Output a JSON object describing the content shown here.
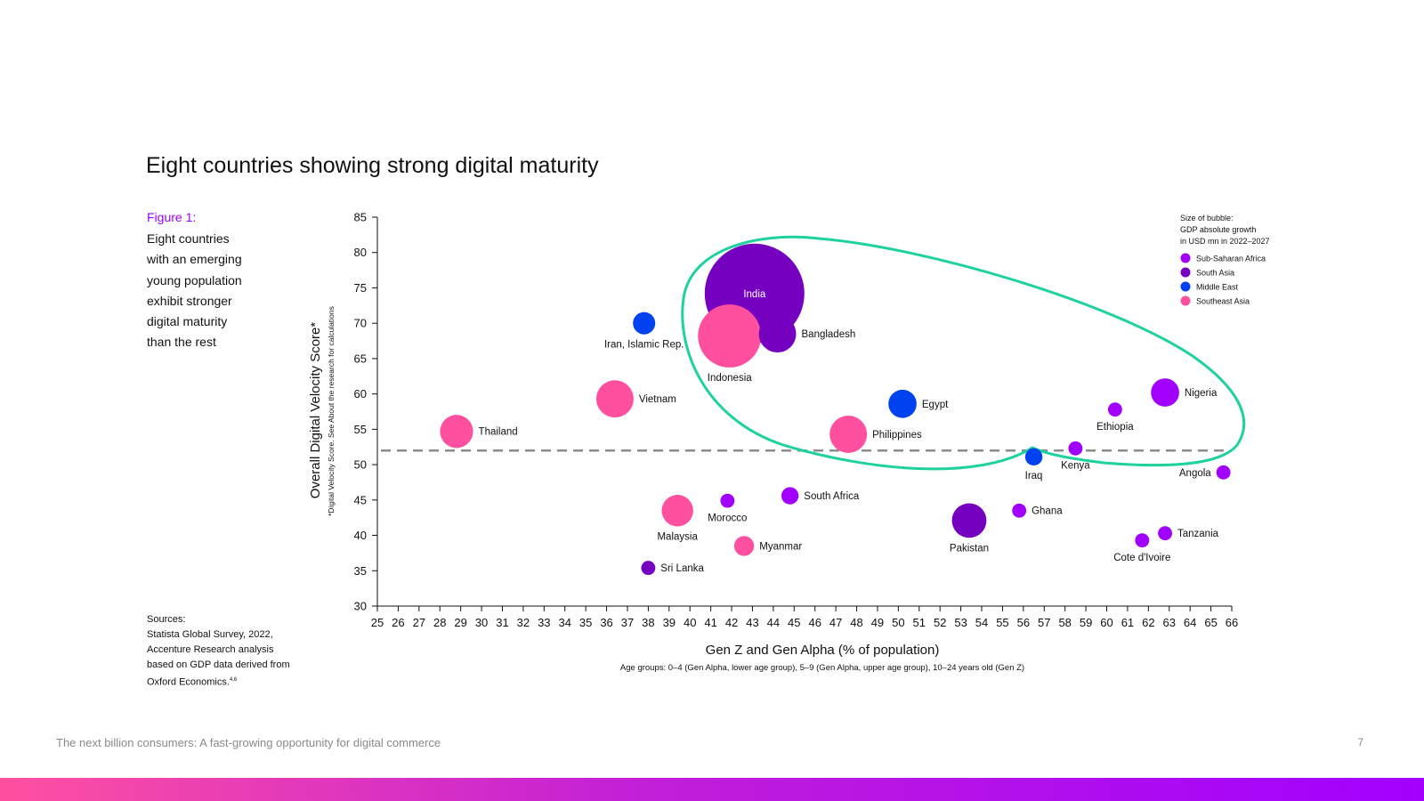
{
  "page": {
    "title": "Eight countries showing strong digital maturity",
    "figure_label": "Figure 1:",
    "caption_lines": [
      "Eight countries",
      "with an emerging",
      "young population",
      "exhibit stronger",
      "digital maturity",
      "than the rest"
    ],
    "sources_lines": [
      "Sources:",
      "Statista Global Survey, 2022,",
      "Accenture Research analysis",
      "based on GDP data derived from",
      "Oxford Economics."
    ],
    "sources_sup": "4,6",
    "footer_text": "The next billion consumers: A fast-growing opportunity for digital commerce",
    "page_number": "7"
  },
  "chart_data": {
    "type": "scatter",
    "title": "Eight countries showing strong digital maturity",
    "xlabel": "Gen Z and Gen Alpha (% of population)",
    "xsublabel": "Age groups: 0–4 (Gen Alpha, lower age group), 5–9 (Gen Alpha, upper age group), 10–24 years old (Gen Z)",
    "ylabel": "Overall Digital Velocity Score*",
    "ysublabel": "*Digital Velocity Score. See About the research for calculations",
    "xlim": [
      25,
      66
    ],
    "ylim": [
      30,
      85
    ],
    "xticks": [
      25,
      26,
      27,
      28,
      29,
      30,
      31,
      32,
      33,
      34,
      35,
      36,
      37,
      38,
      39,
      40,
      41,
      42,
      43,
      44,
      45,
      46,
      47,
      48,
      49,
      50,
      51,
      52,
      53,
      54,
      55,
      56,
      57,
      58,
      59,
      60,
      61,
      62,
      63,
      64,
      65,
      66
    ],
    "yticks": [
      30,
      35,
      40,
      45,
      50,
      55,
      60,
      65,
      70,
      75,
      80,
      85
    ],
    "reference_line_y": 52,
    "legend": {
      "title_lines": [
        "Size of bubble:",
        "GDP absolute growth",
        "in USD mn in 2022–2027"
      ],
      "entries": [
        {
          "region": "Sub-Saharan Africa",
          "color": "#a100ff"
        },
        {
          "region": "South Asia",
          "color": "#7500c0"
        },
        {
          "region": "Middle East",
          "color": "#0041f0"
        },
        {
          "region": "Southeast Asia",
          "color": "#ff50a0"
        }
      ]
    },
    "points": [
      {
        "country": "India",
        "x": 43.1,
        "y": 74.2,
        "size": 100,
        "region": "South Asia",
        "label_pos": "inside"
      },
      {
        "country": "Bangladesh",
        "x": 44.2,
        "y": 68.5,
        "size": 14,
        "region": "South Asia",
        "label_pos": "right"
      },
      {
        "country": "Indonesia",
        "x": 41.9,
        "y": 68.2,
        "size": 40,
        "region": "Southeast Asia",
        "label_pos": "below"
      },
      {
        "country": "Iran, Islamic Rep.",
        "x": 37.8,
        "y": 70.0,
        "size": 5,
        "region": "Middle East",
        "label_pos": "below"
      },
      {
        "country": "Vietnam",
        "x": 36.4,
        "y": 59.3,
        "size": 14,
        "region": "Southeast Asia",
        "label_pos": "right"
      },
      {
        "country": "Thailand",
        "x": 28.8,
        "y": 54.7,
        "size": 11,
        "region": "Southeast Asia",
        "label_pos": "right"
      },
      {
        "country": "Egypt",
        "x": 50.2,
        "y": 58.6,
        "size": 8,
        "region": "Middle East",
        "label_pos": "right"
      },
      {
        "country": "Philippines",
        "x": 47.6,
        "y": 54.3,
        "size": 14,
        "region": "Southeast Asia",
        "label_pos": "right"
      },
      {
        "country": "Nigeria",
        "x": 62.8,
        "y": 60.2,
        "size": 8,
        "region": "Sub-Saharan Africa",
        "label_pos": "right"
      },
      {
        "country": "Ethiopia",
        "x": 60.4,
        "y": 57.8,
        "size": 2,
        "region": "Sub-Saharan Africa",
        "label_pos": "below"
      },
      {
        "country": "Kenya",
        "x": 58.5,
        "y": 52.3,
        "size": 2,
        "region": "Sub-Saharan Africa",
        "label_pos": "below"
      },
      {
        "country": "Iraq",
        "x": 56.5,
        "y": 51.1,
        "size": 3,
        "region": "Middle East",
        "label_pos": "below"
      },
      {
        "country": "Angola",
        "x": 65.6,
        "y": 48.9,
        "size": 2,
        "region": "Sub-Saharan Africa",
        "label_pos": "left"
      },
      {
        "country": "South Africa",
        "x": 44.8,
        "y": 45.6,
        "size": 3,
        "region": "Sub-Saharan Africa",
        "label_pos": "right"
      },
      {
        "country": "Morocco",
        "x": 41.8,
        "y": 44.9,
        "size": 2,
        "region": "Sub-Saharan Africa",
        "label_pos": "below"
      },
      {
        "country": "Malaysia",
        "x": 39.4,
        "y": 43.5,
        "size": 10,
        "region": "Southeast Asia",
        "label_pos": "below"
      },
      {
        "country": "Myanmar",
        "x": 42.6,
        "y": 38.5,
        "size": 4,
        "region": "Southeast Asia",
        "label_pos": "right"
      },
      {
        "country": "Sri Lanka",
        "x": 38.0,
        "y": 35.4,
        "size": 2,
        "region": "South Asia",
        "label_pos": "right"
      },
      {
        "country": "Pakistan",
        "x": 53.4,
        "y": 42.1,
        "size": 12,
        "region": "South Asia",
        "label_pos": "below"
      },
      {
        "country": "Ghana",
        "x": 55.8,
        "y": 43.5,
        "size": 2,
        "region": "Sub-Saharan Africa",
        "label_pos": "right"
      },
      {
        "country": "Tanzania",
        "x": 62.8,
        "y": 40.3,
        "size": 2,
        "region": "Sub-Saharan Africa",
        "label_pos": "right"
      },
      {
        "country": "Cote d'Ivoire",
        "x": 61.7,
        "y": 39.3,
        "size": 2,
        "region": "Sub-Saharan Africa",
        "label_pos": "below"
      }
    ],
    "highlight": {
      "description": "Green outline enclosing the eight high-maturity countries",
      "color": "#1ed2a0"
    }
  }
}
